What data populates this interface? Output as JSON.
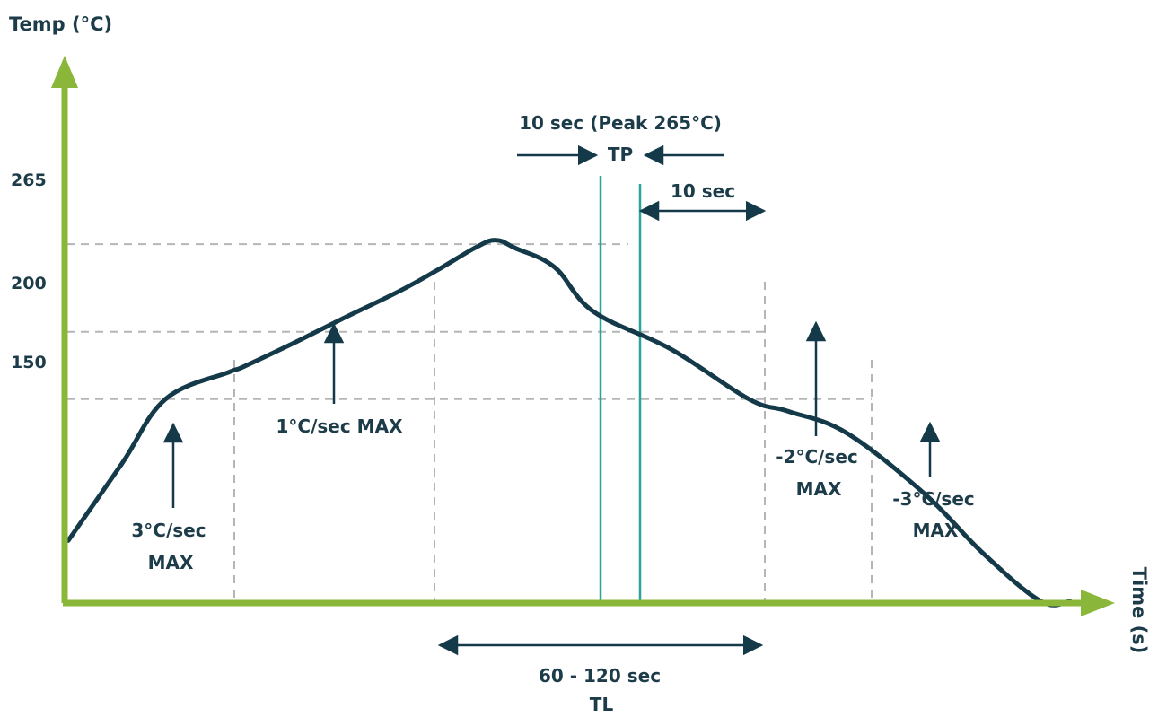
{
  "colors": {
    "axis": "#8ab73a",
    "curve": "#143a4a",
    "text": "#1d3c4a",
    "grid": "#b5b5b5",
    "peak_lines": "#2aa39a"
  },
  "chart_data": {
    "type": "line",
    "title": "",
    "ylabel": "Temp (°C)",
    "xlabel": "Time (s)",
    "y_ticks": [
      "265",
      "200",
      "150"
    ],
    "y_tick_values": [
      265,
      200,
      150
    ],
    "ylim": [
      0,
      385
    ],
    "xlim": [
      0,
      1000
    ],
    "grid": "dashed reference lines at 150, 200, 265",
    "series": [
      {
        "name": "",
        "x": [
          0,
          55,
          100,
          165,
          180,
          230,
          280,
          340,
          380,
          420,
          440,
          460,
          500,
          540,
          620,
          700,
          740,
          800,
          880,
          940,
          1000,
          1030
        ],
        "y": [
          45,
          102,
          150,
          170,
          174,
          191,
          209,
          230,
          246,
          263,
          268,
          262,
          248,
          215,
          187,
          150,
          141,
          125,
          80,
          36,
          0,
          0
        ]
      }
    ],
    "annotations": {
      "peak_line1": "10 sec (Peak 265°C)",
      "peak_line2": "TP",
      "after_peak": "10 sec",
      "ramp1_line1": "3°C/sec",
      "ramp1_line2": "MAX",
      "soak": "1°C/sec MAX",
      "cool1_line1": "-2°C/sec",
      "cool1_line2": "MAX",
      "cool2_line1": "-3°C/sec",
      "cool2_line2": "MAX",
      "tl_line1": "60 - 120 sec",
      "tl_line2": "TL"
    }
  }
}
